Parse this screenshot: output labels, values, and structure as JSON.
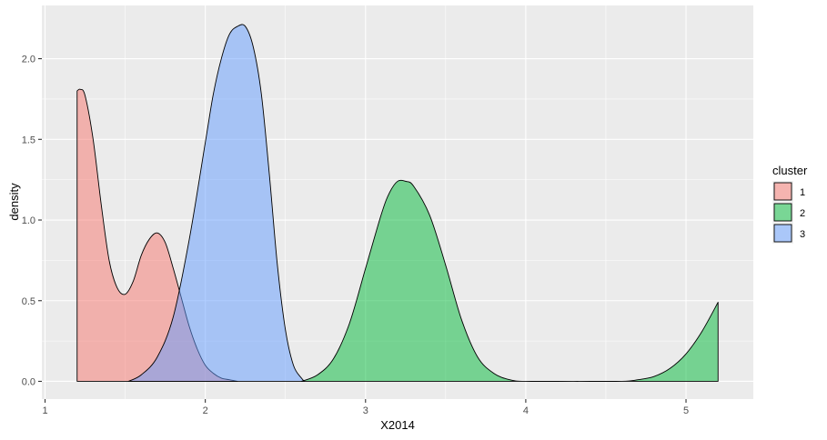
{
  "chart_data": {
    "type": "area",
    "xlabel": "X2014",
    "ylabel": "density",
    "xlim": [
      0.98,
      5.42
    ],
    "ylim": [
      -0.11,
      2.33
    ],
    "x_ticks": [
      1,
      2,
      3,
      4,
      5
    ],
    "y_ticks": [
      0.0,
      0.5,
      1.0,
      1.5,
      2.0
    ],
    "x_tick_labels": [
      "1",
      "2",
      "3",
      "4",
      "5"
    ],
    "y_tick_labels": [
      "0.0",
      "0.5",
      "1.0",
      "1.5",
      "2.0"
    ],
    "grid": true,
    "legend": {
      "title": "cluster",
      "position": "right",
      "entries": [
        "1",
        "2",
        "3"
      ]
    },
    "series": [
      {
        "name": "1",
        "color": "#F8766D",
        "x": [
          1.2,
          1.22,
          1.25,
          1.3,
          1.35,
          1.4,
          1.45,
          1.5,
          1.55,
          1.6,
          1.65,
          1.7,
          1.75,
          1.8,
          1.85,
          1.9,
          1.95,
          2.0,
          2.05,
          2.1,
          2.15,
          2.2
        ],
        "y": [
          1.8,
          1.81,
          1.77,
          1.5,
          1.1,
          0.75,
          0.58,
          0.54,
          0.62,
          0.78,
          0.88,
          0.92,
          0.86,
          0.7,
          0.52,
          0.34,
          0.2,
          0.1,
          0.05,
          0.02,
          0.01,
          0.0
        ]
      },
      {
        "name": "3",
        "color": "#619CFF",
        "x": [
          1.52,
          1.6,
          1.7,
          1.8,
          1.9,
          2.0,
          2.05,
          2.1,
          2.15,
          2.2,
          2.25,
          2.3,
          2.35,
          2.4,
          2.45,
          2.5,
          2.55,
          2.6,
          2.62
        ],
        "y": [
          0.0,
          0.04,
          0.15,
          0.4,
          0.88,
          1.48,
          1.78,
          2.0,
          2.15,
          2.2,
          2.2,
          2.07,
          1.78,
          1.28,
          0.72,
          0.32,
          0.1,
          0.02,
          0.0
        ]
      },
      {
        "name": "2",
        "color": "#00BA38",
        "x": [
          2.6,
          2.7,
          2.8,
          2.9,
          3.0,
          3.1,
          3.15,
          3.2,
          3.25,
          3.3,
          3.4,
          3.5,
          3.6,
          3.7,
          3.8,
          3.9,
          4.0,
          4.3,
          4.6,
          4.7,
          4.8,
          4.9,
          5.0,
          5.1,
          5.2
        ],
        "y": [
          0.0,
          0.04,
          0.14,
          0.36,
          0.7,
          1.04,
          1.17,
          1.24,
          1.24,
          1.21,
          1.03,
          0.72,
          0.38,
          0.15,
          0.05,
          0.01,
          0.0,
          0.0,
          0.0,
          0.01,
          0.03,
          0.08,
          0.17,
          0.31,
          0.49
        ]
      }
    ]
  }
}
